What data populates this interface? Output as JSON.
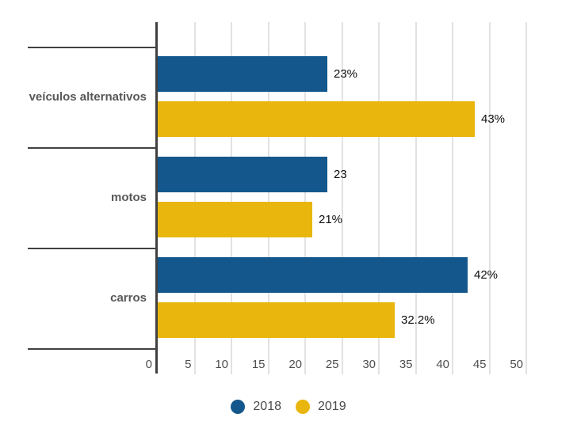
{
  "chart_data": {
    "type": "bar",
    "orientation": "horizontal",
    "title": "",
    "xlabel": "",
    "ylabel": "",
    "categories": [
      "veículos alternativos",
      "motos",
      "carros"
    ],
    "series": [
      {
        "name": "2018",
        "color": "#13578C",
        "values": [
          23,
          23,
          42
        ],
        "value_labels": [
          "23%",
          "23",
          "42%"
        ]
      },
      {
        "name": "2019",
        "color": "#E8B60C",
        "values": [
          43,
          21,
          32.2
        ],
        "value_labels": [
          "43%",
          "21%",
          "32.2%"
        ]
      }
    ],
    "x_ticks": [
      0,
      5,
      10,
      15,
      20,
      25,
      30,
      35,
      40,
      45,
      50
    ],
    "xlim": [
      0,
      50
    ],
    "grid": true,
    "legend_position": "bottom"
  },
  "colors": {
    "background": "#ffffff",
    "axis": "#414141",
    "gridline": "#e2e2e2",
    "category_label": "#58585a",
    "tick_label": "#4f4f4f",
    "data_label": "#0d0d0d",
    "legend_label": "#4b4b4b"
  }
}
